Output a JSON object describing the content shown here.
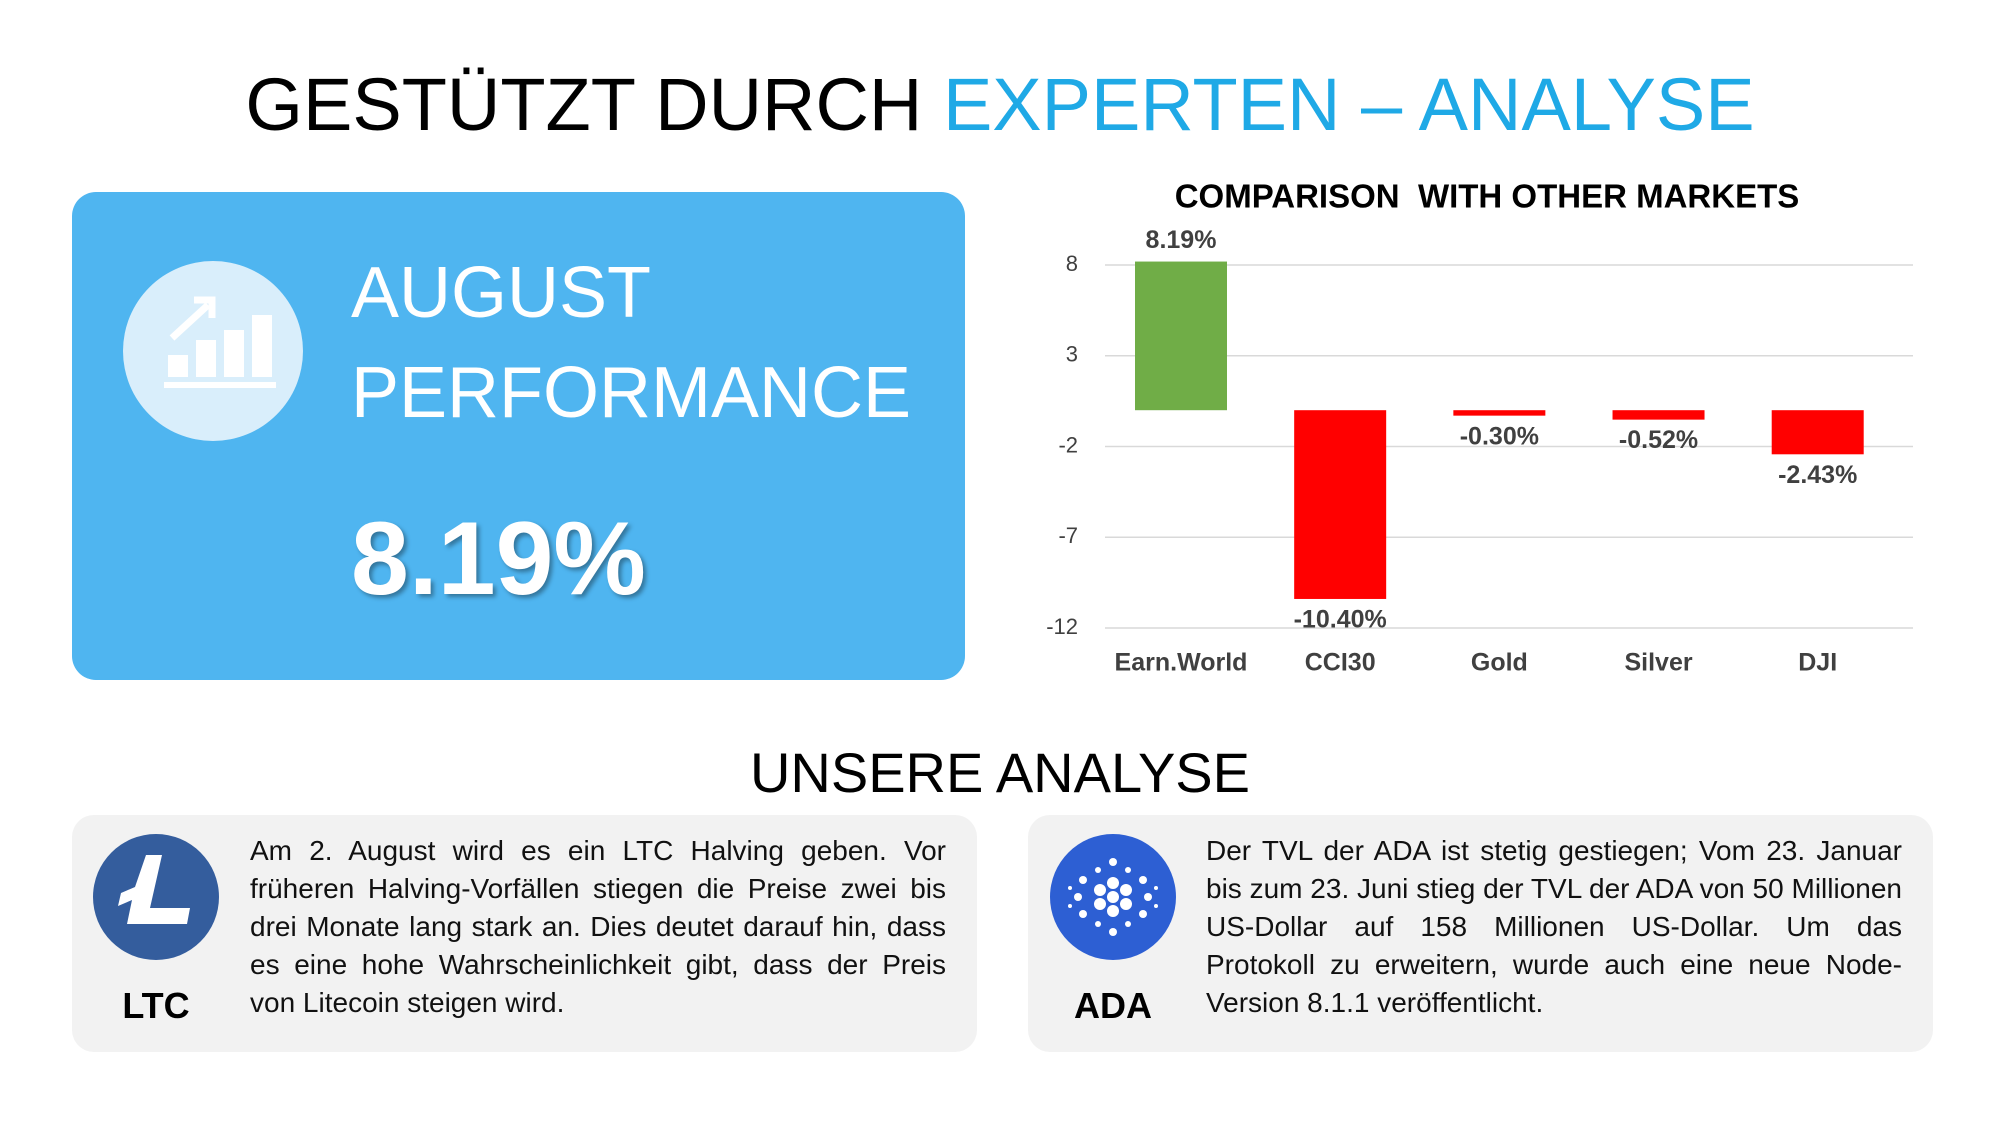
{
  "header": {
    "title_black": "GESTÜTZT DURCH",
    "title_blue": "EXPERTEN – ANALYSE"
  },
  "performance_card": {
    "title_lines": [
      "AUGUST",
      "PERFORMANCE"
    ],
    "value": "8.19%"
  },
  "chart_data": {
    "type": "bar",
    "title": "COMPARISON  WITH OTHER MARKETS",
    "categories": [
      "Earn.World",
      "CCI30",
      "Gold",
      "Silver",
      "DJI"
    ],
    "values": [
      8.19,
      -10.4,
      -0.3,
      -0.52,
      -2.43
    ],
    "value_labels": [
      "8.19%",
      "-10.40%",
      "-0.30%",
      "-0.52%",
      "-2.43%"
    ],
    "colors": [
      "#70ad47",
      "#ff0000",
      "#ff0000",
      "#ff0000",
      "#ff0000"
    ],
    "ylim": [
      -12,
      8
    ],
    "yticks": [
      8,
      3,
      -2,
      -7,
      -12
    ],
    "grid": true
  },
  "analysis": {
    "heading": "UNSERE ANALYSE",
    "cards": [
      {
        "label": "LTC",
        "text": "Am 2. August wird es ein LTC Halving geben. Vor früheren Halving-Vorfällen stiegen die Preise zwei bis drei Monate lang stark an. Dies deutet darauf hin, dass es eine hohe Wahrscheinlichkeit gibt, dass der Preis von Litecoin steigen wird."
      },
      {
        "label": "ADA",
        "text": "Der TVL der ADA ist stetig gestiegen; Vom 23. Januar bis zum 23. Juni stieg der TVL der ADA von 50 Millionen US-Dollar auf 158 Millionen US-Dollar. Um das Protokoll zu erweitern, wurde auch eine neue Node-Version 8.1.1 veröffentlicht."
      }
    ]
  }
}
